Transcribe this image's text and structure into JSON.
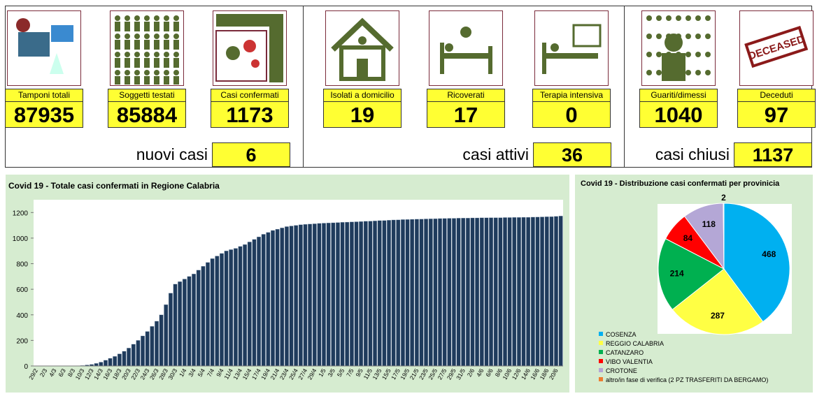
{
  "cards": [
    {
      "label": "Tamponi totali",
      "value": 87935
    },
    {
      "label": "Soggetti testati",
      "value": 85884
    },
    {
      "label": "Casi confermati",
      "value": 1173
    },
    {
      "label": "Isolati a domicilio",
      "value": 19
    },
    {
      "label": "Ricoverati",
      "value": 17
    },
    {
      "label": "Terapia intensiva",
      "value": 0
    },
    {
      "label": "Guariti/dimessi",
      "value": 1040
    },
    {
      "label": "Deceduti",
      "value": 97
    }
  ],
  "summaries": [
    {
      "label": "nuovi casi",
      "value": 6
    },
    {
      "label": "casi attivi",
      "value": 36
    },
    {
      "label": "casi chiusi",
      "value": 1137
    }
  ],
  "chart_data": [
    {
      "type": "bar",
      "title": "Covid 19 - Totale casi confermati in Regione Calabria",
      "color": "#1f3b5c",
      "categories": [
        "29/2",
        null,
        "2/3",
        null,
        "4/3",
        null,
        "6/3",
        null,
        "8/3",
        null,
        "10/3",
        null,
        "12/3",
        null,
        "14/3",
        null,
        "16/3",
        null,
        "18/3",
        null,
        "20/3",
        null,
        "22/3",
        null,
        "24/3",
        null,
        "26/3",
        null,
        "28/3",
        null,
        "30/3",
        null,
        "1/4",
        null,
        "3/4",
        null,
        "5/4",
        null,
        "7/4",
        null,
        "9/4",
        null,
        "11/4",
        null,
        "13/4",
        null,
        "15/4",
        null,
        "17/4",
        null,
        "19/4",
        null,
        "21/4",
        null,
        "23/4",
        null,
        "25/4",
        null,
        "27/4",
        null,
        "29/4",
        null,
        "1/5",
        null,
        "3/5",
        null,
        "5/5",
        null,
        "7/5",
        null,
        "9/5",
        null,
        "11/5",
        null,
        "13/5",
        null,
        "15/5",
        null,
        "17/5",
        null,
        "19/5",
        null,
        "21/5",
        null,
        "23/5",
        null,
        "25/5",
        null,
        "27/5",
        null,
        "29/5",
        null,
        "31/5",
        null,
        "2/6",
        null,
        "4/6",
        null,
        "6/6",
        null,
        "8/6",
        null,
        "10/6",
        null,
        "12/6",
        null,
        "14/6",
        null,
        "16/6",
        null,
        "18/6",
        null,
        "20/6",
        null
      ],
      "values": [
        0,
        0,
        0,
        0,
        0,
        0,
        0,
        0,
        1,
        2,
        4,
        8,
        12,
        20,
        30,
        45,
        60,
        75,
        95,
        115,
        140,
        170,
        200,
        235,
        270,
        310,
        350,
        400,
        480,
        570,
        640,
        660,
        680,
        700,
        720,
        750,
        780,
        810,
        840,
        860,
        880,
        900,
        910,
        920,
        935,
        950,
        970,
        990,
        1010,
        1030,
        1045,
        1060,
        1070,
        1080,
        1090,
        1095,
        1100,
        1105,
        1108,
        1110,
        1112,
        1115,
        1117,
        1119,
        1120,
        1122,
        1124,
        1125,
        1127,
        1128,
        1130,
        1132,
        1133,
        1135,
        1137,
        1138,
        1140,
        1142,
        1143,
        1145,
        1146,
        1147,
        1148,
        1149,
        1150,
        1151,
        1152,
        1153,
        1154,
        1155,
        1155,
        1156,
        1157,
        1157,
        1158,
        1158,
        1159,
        1159,
        1160,
        1160,
        1160,
        1161,
        1161,
        1162,
        1162,
        1163,
        1163,
        1164,
        1165,
        1166,
        1167,
        1168,
        1170,
        1173
      ],
      "ylim": [
        0,
        1300
      ],
      "yticks": [
        0,
        200,
        400,
        600,
        800,
        1000,
        1200
      ]
    },
    {
      "type": "pie",
      "title": "Covid 19 - Distribuzione casi confermati per provinicia",
      "categories": [
        "COSENZA",
        "REGGIO CALABRIA",
        "CATANZARO",
        "VIBO VALENTIA",
        "CROTONE",
        "altro/in fase di verifica (2 PZ TRASFERITI DA BERGAMO)"
      ],
      "values": [
        468,
        287,
        214,
        84,
        118,
        2
      ],
      "colors": [
        "#00b0f0",
        "#ffff44",
        "#00b050",
        "#ff0000",
        "#b4a7d6",
        "#ed7d31"
      ]
    }
  ]
}
